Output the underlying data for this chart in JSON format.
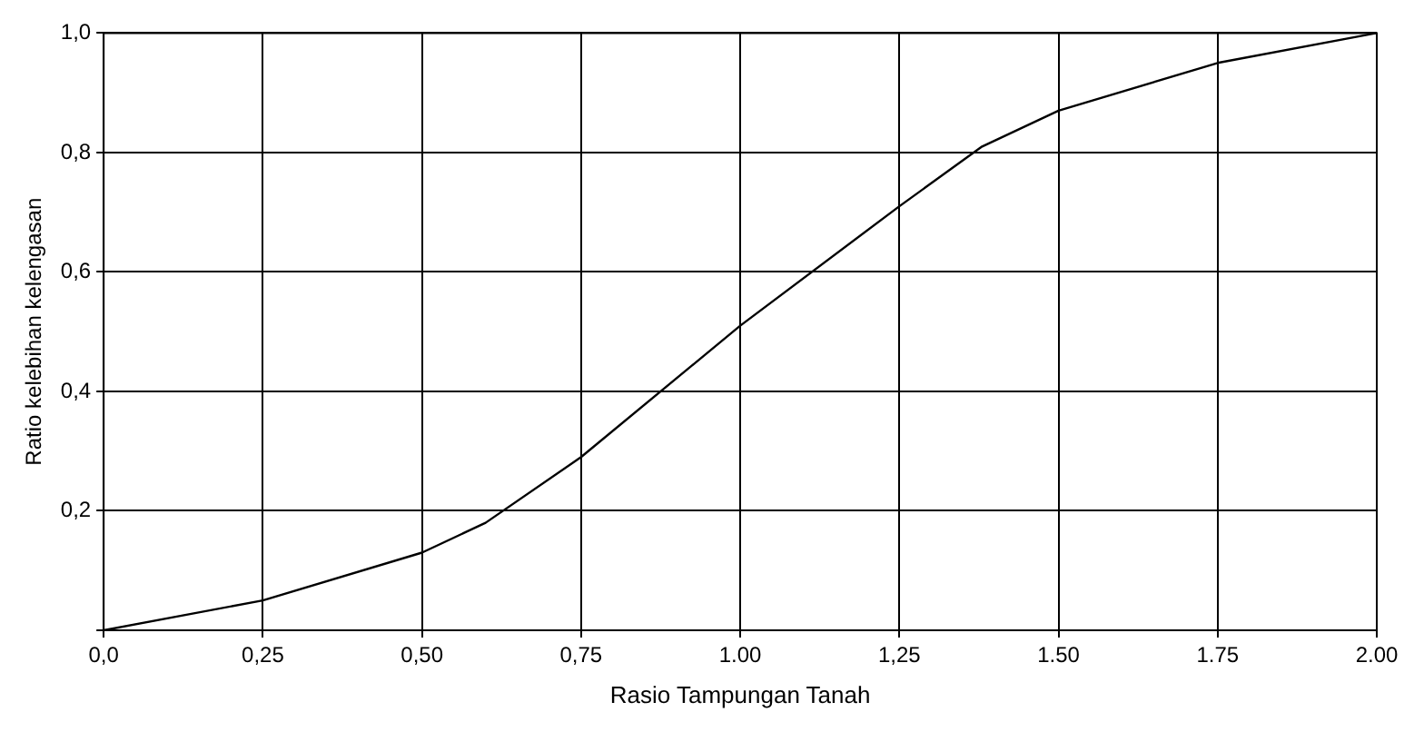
{
  "chart_data": {
    "type": "line",
    "xlabel": "Rasio Tampungan Tanah",
    "ylabel": "Ratio kelebihan kelengasan",
    "x": [
      0,
      0.25,
      0.5,
      0.6,
      0.75,
      1.0,
      1.25,
      1.38,
      1.5,
      1.75,
      2.0
    ],
    "series": [
      {
        "color": "#000000",
        "values": [
          0,
          0.05,
          0.13,
          0.18,
          0.29,
          0.51,
          0.71,
          0.81,
          0.87,
          0.95,
          1.0
        ]
      }
    ],
    "xlim": [
      0,
      2
    ],
    "ylim": [
      0,
      1
    ],
    "xticks": [
      {
        "value": 0,
        "label": "0,0"
      },
      {
        "value": 0.25,
        "label": "0,25"
      },
      {
        "value": 0.5,
        "label": "0,50"
      },
      {
        "value": 0.75,
        "label": "0,75"
      },
      {
        "value": 1,
        "label": "1.00"
      },
      {
        "value": 1.25,
        "label": "1,25"
      },
      {
        "value": 1.5,
        "label": "1.50"
      },
      {
        "value": 1.75,
        "label": "1.75"
      },
      {
        "value": 2,
        "label": "2.00"
      }
    ],
    "yticks": [
      {
        "value": 0,
        "label": null
      },
      {
        "value": 0.2,
        "label": "0,2"
      },
      {
        "value": 0.4,
        "label": "0,4"
      },
      {
        "value": 0.6,
        "label": "0,6"
      },
      {
        "value": 0.8,
        "label": "0,8"
      },
      {
        "value": 1,
        "label": "1,0"
      }
    ],
    "grid": true,
    "marker": "none",
    "line_style": "solid"
  }
}
